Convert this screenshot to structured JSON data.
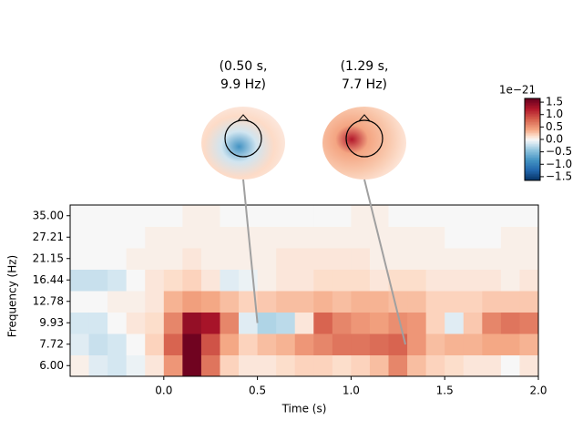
{
  "chart_data": {
    "type": "heatmap",
    "x_label": "Time (s)",
    "y_label": "Frequency (Hz)",
    "categories": [
      "6.00",
      "7.72",
      "9.93",
      "12.78",
      "16.44",
      "21.15",
      "27.21",
      "35.00"
    ],
    "x": [
      -0.45,
      -0.35,
      -0.25,
      -0.15,
      -0.05,
      0.05,
      0.15,
      0.25,
      0.35,
      0.45,
      0.55,
      0.65,
      0.75,
      0.85,
      0.95,
      1.05,
      1.15,
      1.25,
      1.35,
      1.45,
      1.55,
      1.65,
      1.75,
      1.85,
      1.95
    ],
    "xlim": [
      -0.5,
      2.0
    ],
    "xticks": [
      {
        "value": 0,
        "label": "0.0"
      },
      0.5,
      {
        "value": 1,
        "label": "1.0"
      },
      1.5,
      {
        "value": 2,
        "label": "2.0"
      }
    ],
    "values": [
      [
        0.05,
        -0.1,
        -0.15,
        -0.05,
        0.1,
        0.5,
        1.6,
        0.7,
        0.2,
        0.1,
        0.1,
        0.15,
        0.2,
        0.2,
        0.15,
        0.2,
        0.3,
        0.6,
        0.3,
        0.2,
        0.15,
        0.1,
        0.1,
        0,
        0.1
      ],
      [
        -0.1,
        -0.2,
        -0.15,
        0,
        0.2,
        0.8,
        1.6,
        0.9,
        0.4,
        0.2,
        0.3,
        0.35,
        0.5,
        0.6,
        0.7,
        0.7,
        0.75,
        0.8,
        0.5,
        0.3,
        0.35,
        0.35,
        0.4,
        0.4,
        0.35
      ],
      [
        -0.15,
        -0.15,
        0,
        0.1,
        0.15,
        0.6,
        1.4,
        1.3,
        0.6,
        -0.1,
        -0.3,
        -0.25,
        0.1,
        0.8,
        0.6,
        0.5,
        0.45,
        0.55,
        0.5,
        0.2,
        -0.1,
        0.25,
        0.6,
        0.7,
        0.65
      ],
      [
        0,
        0,
        0.05,
        0.05,
        0.1,
        0.35,
        0.45,
        0.4,
        0.3,
        0.2,
        0.25,
        0.3,
        0.3,
        0.35,
        0.3,
        0.35,
        0.35,
        0.3,
        0.3,
        0.2,
        0.2,
        0.2,
        0.25,
        0.25,
        0.25
      ],
      [
        -0.2,
        -0.2,
        -0.15,
        0,
        0.1,
        0.15,
        0.2,
        0.1,
        -0.1,
        -0.05,
        0.05,
        0.1,
        0.1,
        0.15,
        0.15,
        0.15,
        0.1,
        0.15,
        0.15,
        0.1,
        0.1,
        0.1,
        0.1,
        0.05,
        0.1
      ],
      [
        0,
        0,
        0,
        0.05,
        0.05,
        0.05,
        0.1,
        0.05,
        0.05,
        0.05,
        0.05,
        0.1,
        0.1,
        0.1,
        0.1,
        0.1,
        0.05,
        0.05,
        0.05,
        0.05,
        0.05,
        0.05,
        0.05,
        0.05,
        0.05
      ],
      [
        0,
        0,
        0,
        0,
        0.05,
        0.05,
        0.05,
        0.05,
        0.05,
        0.05,
        0.05,
        0.05,
        0.05,
        0.05,
        0.05,
        0.05,
        0.05,
        0.05,
        0.05,
        0.05,
        0,
        0,
        0,
        0.05,
        0.05
      ],
      [
        0,
        0,
        0,
        0,
        0,
        0,
        0.05,
        0.05,
        0,
        0,
        0,
        0,
        0,
        0,
        0,
        0.05,
        0.05,
        0,
        0,
        0,
        0,
        0,
        0,
        0,
        0
      ]
    ],
    "colormap": "RdBu_r",
    "colorbar": {
      "offset_label": "1e−21",
      "lim": [
        -1.65,
        1.65
      ],
      "ticks": [
        1.5,
        {
          "value": 1,
          "label": "1.0"
        },
        0.5,
        {
          "value": 0,
          "label": "0.0"
        },
        {
          "value": -0.5,
          "label": "−0.5"
        },
        {
          "value": -1,
          "label": "−1.0"
        },
        {
          "value": -1.5,
          "label": "−1.5"
        }
      ]
    },
    "annotations": [
      {
        "label_lines": [
          "(0.50 s,",
          "9.9 Hz)"
        ],
        "x": 0.5,
        "y": 9.9
      },
      {
        "label_lines": [
          "(1.29 s,",
          "7.7 Hz)"
        ],
        "x": 1.29,
        "y": 7.7
      }
    ]
  }
}
